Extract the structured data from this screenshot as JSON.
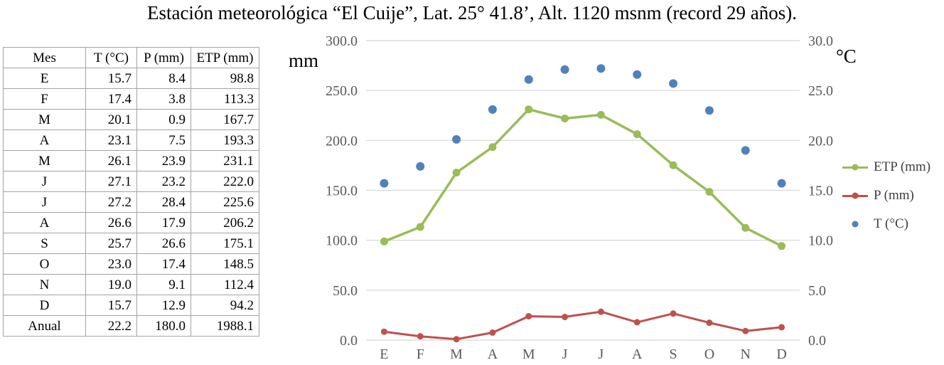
{
  "title": "Estación meteorológica “El Cuije”, Lat. 25° 41.8’, Alt. 1120 msnm (record 29 años).",
  "table": {
    "headers": [
      "Mes",
      "T (°C)",
      "P (mm)",
      "ETP (mm)"
    ],
    "rows": [
      [
        "E",
        "15.7",
        "8.4",
        "98.8"
      ],
      [
        "F",
        "17.4",
        "3.8",
        "113.3"
      ],
      [
        "M",
        "20.1",
        "0.9",
        "167.7"
      ],
      [
        "A",
        "23.1",
        "7.5",
        "193.3"
      ],
      [
        "M",
        "26.1",
        "23.9",
        "231.1"
      ],
      [
        "J",
        "27.1",
        "23.2",
        "222.0"
      ],
      [
        "J",
        "27.2",
        "28.4",
        "225.6"
      ],
      [
        "A",
        "26.6",
        "17.9",
        "206.2"
      ],
      [
        "S",
        "25.7",
        "26.6",
        "175.1"
      ],
      [
        "O",
        "23.0",
        "17.4",
        "148.5"
      ],
      [
        "N",
        "19.0",
        "9.1",
        "112.4"
      ],
      [
        "Anual",
        "22.2",
        "180.0",
        "1988.1"
      ]
    ],
    "row_december": [
      "D",
      "15.7",
      "12.9",
      "94.2"
    ]
  },
  "chart_data": {
    "type": "line",
    "categories": [
      "E",
      "F",
      "M",
      "A",
      "M",
      "J",
      "J",
      "A",
      "S",
      "O",
      "N",
      "D"
    ],
    "series": [
      {
        "name": "ETP (mm)",
        "type": "line",
        "axis": "left",
        "color": "#9BBB59",
        "values": [
          98.8,
          113.3,
          167.7,
          193.3,
          231.1,
          222.0,
          225.6,
          206.2,
          175.1,
          148.5,
          112.4,
          94.2
        ]
      },
      {
        "name": "P (mm)",
        "type": "line",
        "axis": "left",
        "color": "#C0504D",
        "values": [
          8.4,
          3.8,
          0.9,
          7.5,
          23.9,
          23.2,
          28.4,
          17.9,
          26.6,
          17.4,
          9.1,
          12.9
        ]
      },
      {
        "name": "T (°C)",
        "type": "scatter",
        "axis": "right",
        "color": "#4F81BD",
        "values": [
          15.7,
          17.4,
          20.1,
          23.1,
          26.1,
          27.1,
          27.2,
          26.6,
          25.7,
          23.0,
          19.0,
          15.7
        ]
      }
    ],
    "left_axis": {
      "unit": "mm",
      "min": 0,
      "max": 300,
      "step": 50
    },
    "right_axis": {
      "unit": "°C",
      "min": 0,
      "max": 30,
      "step": 5
    },
    "tick_decimals": 1,
    "grid": true,
    "legend_position": "right",
    "grid_color": "#D6D6D6"
  }
}
